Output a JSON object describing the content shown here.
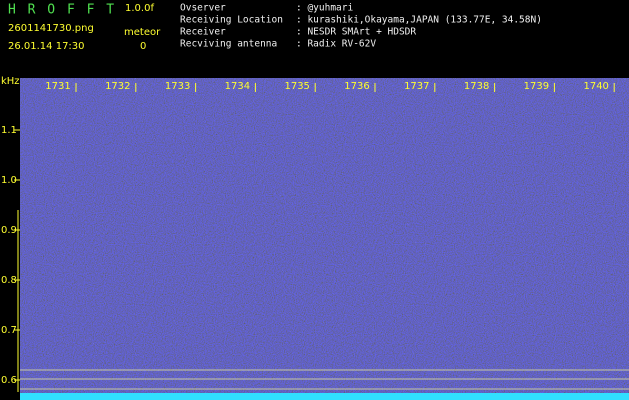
{
  "header": {
    "app_name": "H R O F F T",
    "version": "1.0.0f",
    "file_name": "2601141730.png",
    "mode": "meteor",
    "timestamp": "26.01.14 17:30",
    "count": "0"
  },
  "station": {
    "rows": [
      {
        "label": "Ovserver",
        "value": ": @yuhmari"
      },
      {
        "label": "Receiving Location",
        "value": ": kurashiki,Okayama,JAPAN (133.77E, 34.58N)"
      },
      {
        "label": "Receiver",
        "value": ": NESDR SMArt + HDSDR"
      },
      {
        "label": "Recviving antenna",
        "value": ": Radix RV-62V"
      }
    ]
  },
  "spectrogram": {
    "y_unit": "kHz",
    "time_ticks": [
      "1731",
      "1732",
      "1733",
      "1734",
      "1735",
      "1736",
      "1737",
      "1738",
      "1739",
      "1740"
    ],
    "freq_ticks": [
      "1.1",
      "1.0",
      "0.9",
      "0.8",
      "0.7",
      "0.6"
    ]
  }
}
